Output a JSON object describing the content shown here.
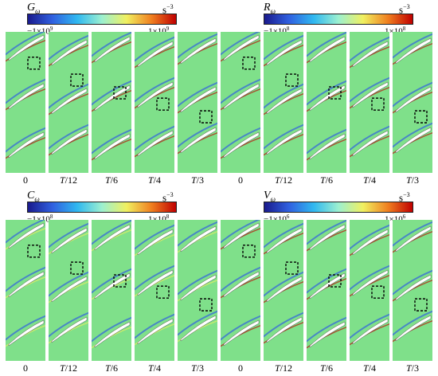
{
  "colorbar_colors": [
    "#1a1a8c",
    "#3060e0",
    "#30b8f0",
    "#9cf0d0",
    "#f0f060",
    "#f08020",
    "#c00000"
  ],
  "background_color": "#7fe08a",
  "groups": [
    {
      "id": "g",
      "symbol": "G",
      "subscript": "ω",
      "unit_base": "s",
      "unit_exp": "−3",
      "min_base": "−1×10",
      "min_exp": "9",
      "max_base": "1×10",
      "max_exp": "9",
      "panels": [
        {
          "label": "0",
          "italic_part": "",
          "rest": "0",
          "box_level": 0.18
        },
        {
          "label": "T/12",
          "italic_part": "T",
          "rest": "/12",
          "box_level": 0.3
        },
        {
          "label": "T/6",
          "italic_part": "T",
          "rest": "/6",
          "box_level": 0.39
        },
        {
          "label": "T/4",
          "italic_part": "T",
          "rest": "/4",
          "box_level": 0.47
        },
        {
          "label": "T/3",
          "italic_part": "T",
          "rest": "/3",
          "box_level": 0.56
        }
      ]
    },
    {
      "id": "r",
      "symbol": "R",
      "subscript": "ω",
      "unit_base": "s",
      "unit_exp": "−3",
      "min_base": "−1×10",
      "min_exp": "8",
      "max_base": "1×10",
      "max_exp": "8",
      "panels": [
        {
          "label": "0",
          "italic_part": "",
          "rest": "0",
          "box_level": 0.18
        },
        {
          "label": "T/12",
          "italic_part": "T",
          "rest": "/12",
          "box_level": 0.3
        },
        {
          "label": "T/6",
          "italic_part": "T",
          "rest": "/6",
          "box_level": 0.39
        },
        {
          "label": "T/4",
          "italic_part": "T",
          "rest": "/4",
          "box_level": 0.47
        },
        {
          "label": "T/3",
          "italic_part": "T",
          "rest": "/3",
          "box_level": 0.56
        }
      ]
    },
    {
      "id": "c",
      "symbol": "C",
      "subscript": "ω",
      "unit_base": "s",
      "unit_exp": "−3",
      "min_base": "−1×10",
      "min_exp": "8",
      "max_base": "1×10",
      "max_exp": "8",
      "panels": [
        {
          "label": "0",
          "italic_part": "",
          "rest": "0",
          "box_level": 0.18
        },
        {
          "label": "T/12",
          "italic_part": "T",
          "rest": "/12",
          "box_level": 0.3
        },
        {
          "label": "T/6",
          "italic_part": "T",
          "rest": "/6",
          "box_level": 0.39
        },
        {
          "label": "T/4",
          "italic_part": "T",
          "rest": "/4",
          "box_level": 0.47
        },
        {
          "label": "T/3",
          "italic_part": "T",
          "rest": "/3",
          "box_level": 0.56
        }
      ]
    },
    {
      "id": "v",
      "symbol": "V",
      "subscript": "ω",
      "unit_base": "s",
      "unit_exp": "−3",
      "min_base": "−1×10",
      "min_exp": "6",
      "max_base": "1×10",
      "max_exp": "6",
      "panels": [
        {
          "label": "0",
          "italic_part": "",
          "rest": "0",
          "box_level": 0.18
        },
        {
          "label": "T/12",
          "italic_part": "T",
          "rest": "/12",
          "box_level": 0.3
        },
        {
          "label": "T/6",
          "italic_part": "T",
          "rest": "/6",
          "box_level": 0.39
        },
        {
          "label": "T/4",
          "italic_part": "T",
          "rest": "/4",
          "box_level": 0.47
        },
        {
          "label": "T/3",
          "italic_part": "T",
          "rest": "/3",
          "box_level": 0.56
        }
      ]
    }
  ]
}
